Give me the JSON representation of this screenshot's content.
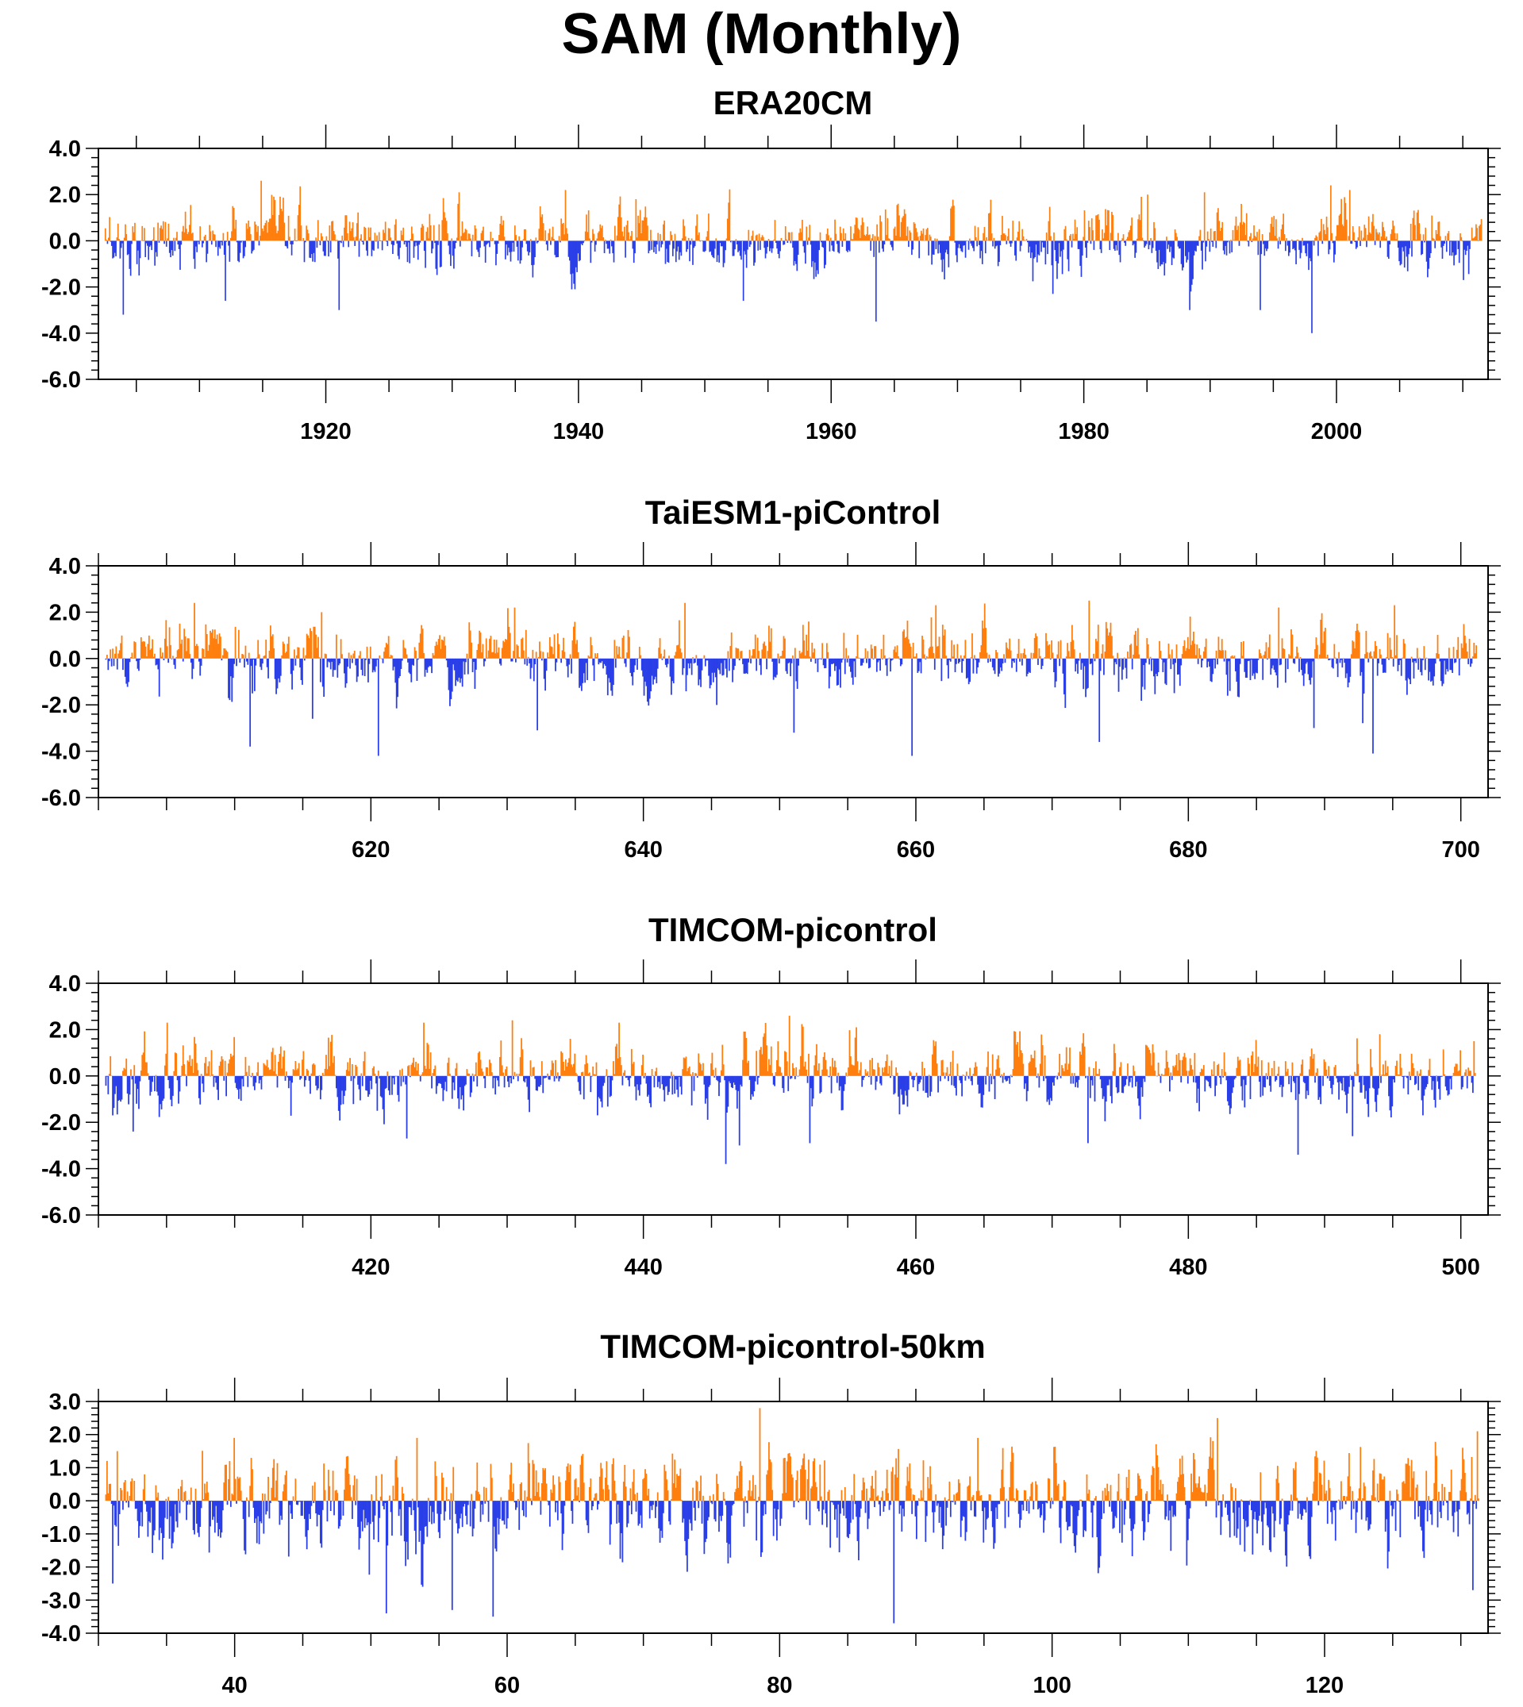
{
  "figure": {
    "title": "SAM (Monthly)",
    "positive_color": "#ff7f0e",
    "negative_color": "#2a3fe8"
  },
  "chart_data": [
    {
      "type": "bar",
      "title": "ERA20CM",
      "xlabel": "",
      "ylabel": "",
      "xlim": [
        1902,
        2012
      ],
      "ylim": [
        -6.0,
        4.0
      ],
      "xticks": [
        1920,
        1940,
        1960,
        1980,
        2000
      ],
      "xtick_labels": [
        "1920",
        "1940",
        "1960",
        "1980",
        "2000"
      ],
      "yticks": [
        4.0,
        2.0,
        0.0,
        -2.0,
        -4.0,
        -6.0
      ],
      "ytick_labels": [
        "4.0",
        "2.0",
        "0.0",
        "-2.0",
        "-4.0",
        "-6.0"
      ],
      "grid": false,
      "legend": "none",
      "x_start": 1902.5,
      "x_end": 2011.5,
      "mean_amplitude": 0.7,
      "extremes": [
        {
          "x": 1903.9,
          "y": -3.2
        },
        {
          "x": 1912.0,
          "y": -2.6
        },
        {
          "x": 1914.8,
          "y": 2.6
        },
        {
          "x": 1921.0,
          "y": -3.0
        },
        {
          "x": 1930.5,
          "y": 2.1
        },
        {
          "x": 1938.9,
          "y": 2.2
        },
        {
          "x": 1939.7,
          "y": -2.1
        },
        {
          "x": 1944.5,
          "y": 1.8
        },
        {
          "x": 1953.0,
          "y": -2.6
        },
        {
          "x": 1963.5,
          "y": -3.5
        },
        {
          "x": 1969.4,
          "y": 1.4
        },
        {
          "x": 1977.5,
          "y": -2.3
        },
        {
          "x": 1985.0,
          "y": 2.0
        },
        {
          "x": 1988.3,
          "y": -3.0
        },
        {
          "x": 1989.5,
          "y": 2.1
        },
        {
          "x": 1993.9,
          "y": -3.0
        },
        {
          "x": 1998.0,
          "y": -4.0
        },
        {
          "x": 1999.5,
          "y": 2.4
        },
        {
          "x": 2001.0,
          "y": 2.2
        },
        {
          "x": 2010.0,
          "y": -1.7
        }
      ]
    },
    {
      "type": "bar",
      "title": "TaiESM1-piControl",
      "xlabel": "",
      "ylabel": "",
      "xlim": [
        600,
        702
      ],
      "ylim": [
        -6.0,
        4.0
      ],
      "xticks": [
        620,
        640,
        660,
        680,
        700
      ],
      "xtick_labels": [
        "620",
        "640",
        "660",
        "680",
        "700"
      ],
      "yticks": [
        4.0,
        2.0,
        0.0,
        -2.0,
        -4.0,
        -6.0
      ],
      "ytick_labels": [
        "4.0",
        "2.0",
        "0.0",
        "-2.0",
        "-4.0",
        "-6.0"
      ],
      "grid": false,
      "legend": "none",
      "x_start": 600.5,
      "x_end": 701.2,
      "mean_amplitude": 0.75,
      "extremes": [
        {
          "x": 607.0,
          "y": 2.4
        },
        {
          "x": 611.1,
          "y": -3.8
        },
        {
          "x": 615.7,
          "y": -2.6
        },
        {
          "x": 616.3,
          "y": 2.0
        },
        {
          "x": 620.5,
          "y": -4.2
        },
        {
          "x": 630.5,
          "y": 2.2
        },
        {
          "x": 632.2,
          "y": -3.1
        },
        {
          "x": 643.0,
          "y": 2.4
        },
        {
          "x": 651.0,
          "y": -3.2
        },
        {
          "x": 659.7,
          "y": -4.2
        },
        {
          "x": 661.4,
          "y": 2.3
        },
        {
          "x": 672.7,
          "y": 2.5
        },
        {
          "x": 673.4,
          "y": -3.6
        },
        {
          "x": 686.6,
          "y": 2.2
        },
        {
          "x": 689.2,
          "y": -3.0
        },
        {
          "x": 693.5,
          "y": -4.1
        },
        {
          "x": 695.1,
          "y": 2.3
        }
      ]
    },
    {
      "type": "bar",
      "title": "TIMCOM-picontrol",
      "xlabel": "",
      "ylabel": "",
      "xlim": [
        400,
        502
      ],
      "ylim": [
        -6.0,
        4.0
      ],
      "xticks": [
        420,
        440,
        460,
        480,
        500
      ],
      "xtick_labels": [
        "420",
        "440",
        "460",
        "480",
        "500"
      ],
      "yticks": [
        4.0,
        2.0,
        0.0,
        -2.0,
        -4.0,
        -6.0
      ],
      "ytick_labels": [
        "4.0",
        "2.0",
        "0.0",
        "-2.0",
        "-4.0",
        "-6.0"
      ],
      "grid": false,
      "legend": "none",
      "x_start": 400.5,
      "x_end": 501.1,
      "mean_amplitude": 0.75,
      "extremes": [
        {
          "x": 402.5,
          "y": -2.4
        },
        {
          "x": 405.0,
          "y": 2.3
        },
        {
          "x": 422.6,
          "y": -2.7
        },
        {
          "x": 423.8,
          "y": 2.3
        },
        {
          "x": 430.3,
          "y": 2.4
        },
        {
          "x": 438.2,
          "y": 2.3
        },
        {
          "x": 446.0,
          "y": -3.8
        },
        {
          "x": 447.0,
          "y": -3.0
        },
        {
          "x": 450.7,
          "y": 2.6
        },
        {
          "x": 452.2,
          "y": -2.9
        },
        {
          "x": 455.6,
          "y": 2.1
        },
        {
          "x": 472.6,
          "y": -2.9
        },
        {
          "x": 488.0,
          "y": -3.4
        },
        {
          "x": 492.0,
          "y": -2.6
        },
        {
          "x": 494.0,
          "y": 1.8
        },
        {
          "x": 500.9,
          "y": 1.5
        }
      ]
    },
    {
      "type": "bar",
      "title": "TIMCOM-picontrol-50km",
      "xlabel": "",
      "ylabel": "",
      "xlim": [
        30,
        132
      ],
      "ylim": [
        -4.0,
        3.0
      ],
      "xticks": [
        40,
        60,
        80,
        100,
        120
      ],
      "xtick_labels": [
        "40",
        "60",
        "80",
        "100",
        "120"
      ],
      "yticks": [
        3.0,
        2.0,
        1.0,
        0.0,
        -1.0,
        -2.0,
        -3.0,
        -4.0
      ],
      "ytick_labels": [
        "3.0",
        "2.0",
        "1.0",
        "0.0",
        "-1.0",
        "-2.0",
        "-3.0",
        "-4.0"
      ],
      "grid": false,
      "legend": "none",
      "x_start": 30.5,
      "x_end": 131.3,
      "mean_amplitude": 0.8,
      "extremes": [
        {
          "x": 31.0,
          "y": -2.5
        },
        {
          "x": 31.3,
          "y": 1.5
        },
        {
          "x": 39.9,
          "y": 1.9
        },
        {
          "x": 51.1,
          "y": -3.4
        },
        {
          "x": 53.3,
          "y": 1.9
        },
        {
          "x": 55.9,
          "y": -3.3
        },
        {
          "x": 58.9,
          "y": -3.5
        },
        {
          "x": 78.5,
          "y": 2.8
        },
        {
          "x": 88.3,
          "y": -3.7
        },
        {
          "x": 94.5,
          "y": 1.9
        },
        {
          "x": 112.1,
          "y": 2.5
        },
        {
          "x": 130.8,
          "y": -2.7
        },
        {
          "x": 131.2,
          "y": 2.1
        }
      ]
    }
  ]
}
